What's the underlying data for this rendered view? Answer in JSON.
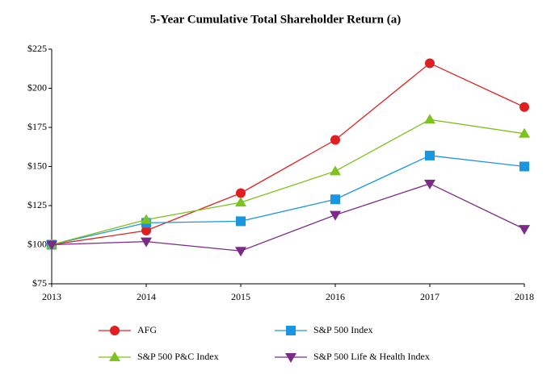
{
  "chart_data": {
    "type": "line",
    "title": "5-Year Cumulative Total Shareholder Return (a)",
    "categories": [
      "2013",
      "2014",
      "2015",
      "2016",
      "2017",
      "2018"
    ],
    "series": [
      {
        "name": "AFG",
        "color": "#e02020",
        "marker": "circle",
        "values": [
          100,
          109,
          133,
          167,
          216,
          188
        ]
      },
      {
        "name": "S&P 500 Index",
        "color": "#1a96e0",
        "marker": "square",
        "values": [
          100,
          114,
          115,
          129,
          157,
          150
        ]
      },
      {
        "name": "S&P 500 P&C Index",
        "color": "#7dc21e",
        "marker": "triangle-up",
        "values": [
          100,
          116,
          127,
          147,
          180,
          171
        ]
      },
      {
        "name": "S&P 500 Life & Health Index",
        "color": "#7b2a88",
        "marker": "triangle-down",
        "values": [
          100,
          102,
          96,
          119,
          139,
          110
        ]
      }
    ],
    "ylim": [
      75,
      225
    ],
    "yticks": [
      {
        "value": 75,
        "label": "$75"
      },
      {
        "value": 100,
        "label": "$100"
      },
      {
        "value": 125,
        "label": "$125"
      },
      {
        "value": 150,
        "label": "$150"
      },
      {
        "value": 175,
        "label": "$175"
      },
      {
        "value": 200,
        "label": "$200"
      },
      {
        "value": 225,
        "label": "$225"
      }
    ],
    "grid": false
  }
}
